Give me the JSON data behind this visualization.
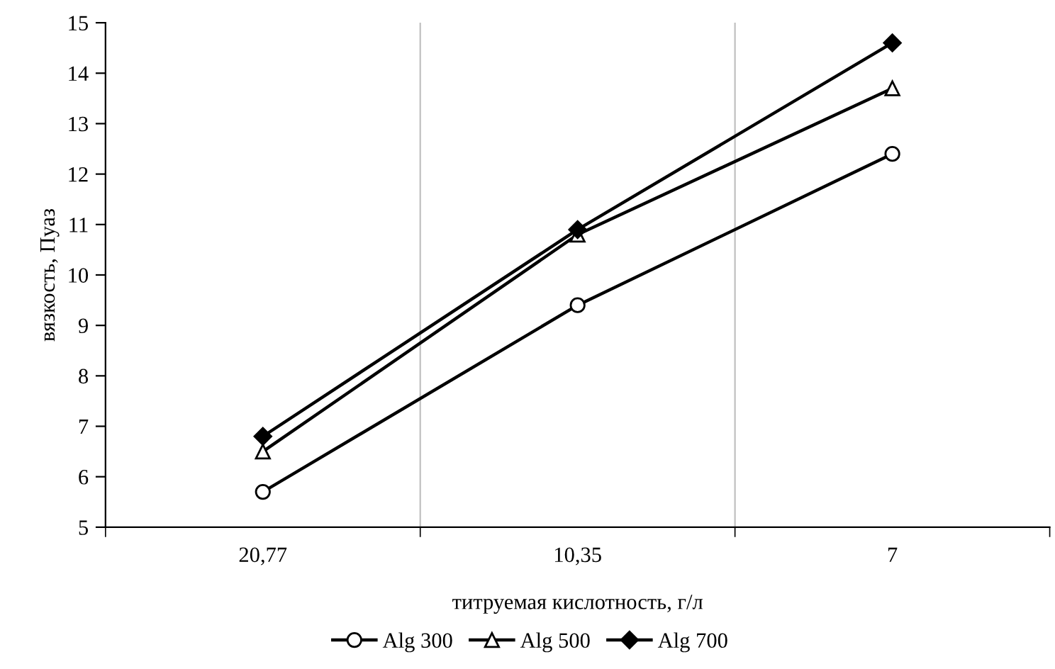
{
  "chart_data": {
    "type": "line",
    "xlabel": "титруемая кислотность, г/л",
    "ylabel": "вязкость, Пуаз",
    "categories": [
      "20,77",
      "10,35",
      "7"
    ],
    "ylim": [
      5,
      15
    ],
    "yticks": [
      5,
      6,
      7,
      8,
      9,
      10,
      11,
      12,
      13,
      14,
      15
    ],
    "grid": "x",
    "legend": "bottom",
    "line_style": "solid",
    "series": [
      {
        "name": "Alg 300",
        "color": "#000000",
        "marker": "circle",
        "values": [
          5.7,
          9.4,
          12.4
        ]
      },
      {
        "name": "Alg 500",
        "color": "#000000",
        "marker": "triangle",
        "values": [
          6.5,
          10.8,
          13.7
        ]
      },
      {
        "name": "Alg 700",
        "color": "#000000",
        "marker": "diamond",
        "values": [
          6.8,
          10.9,
          14.6
        ]
      }
    ]
  }
}
